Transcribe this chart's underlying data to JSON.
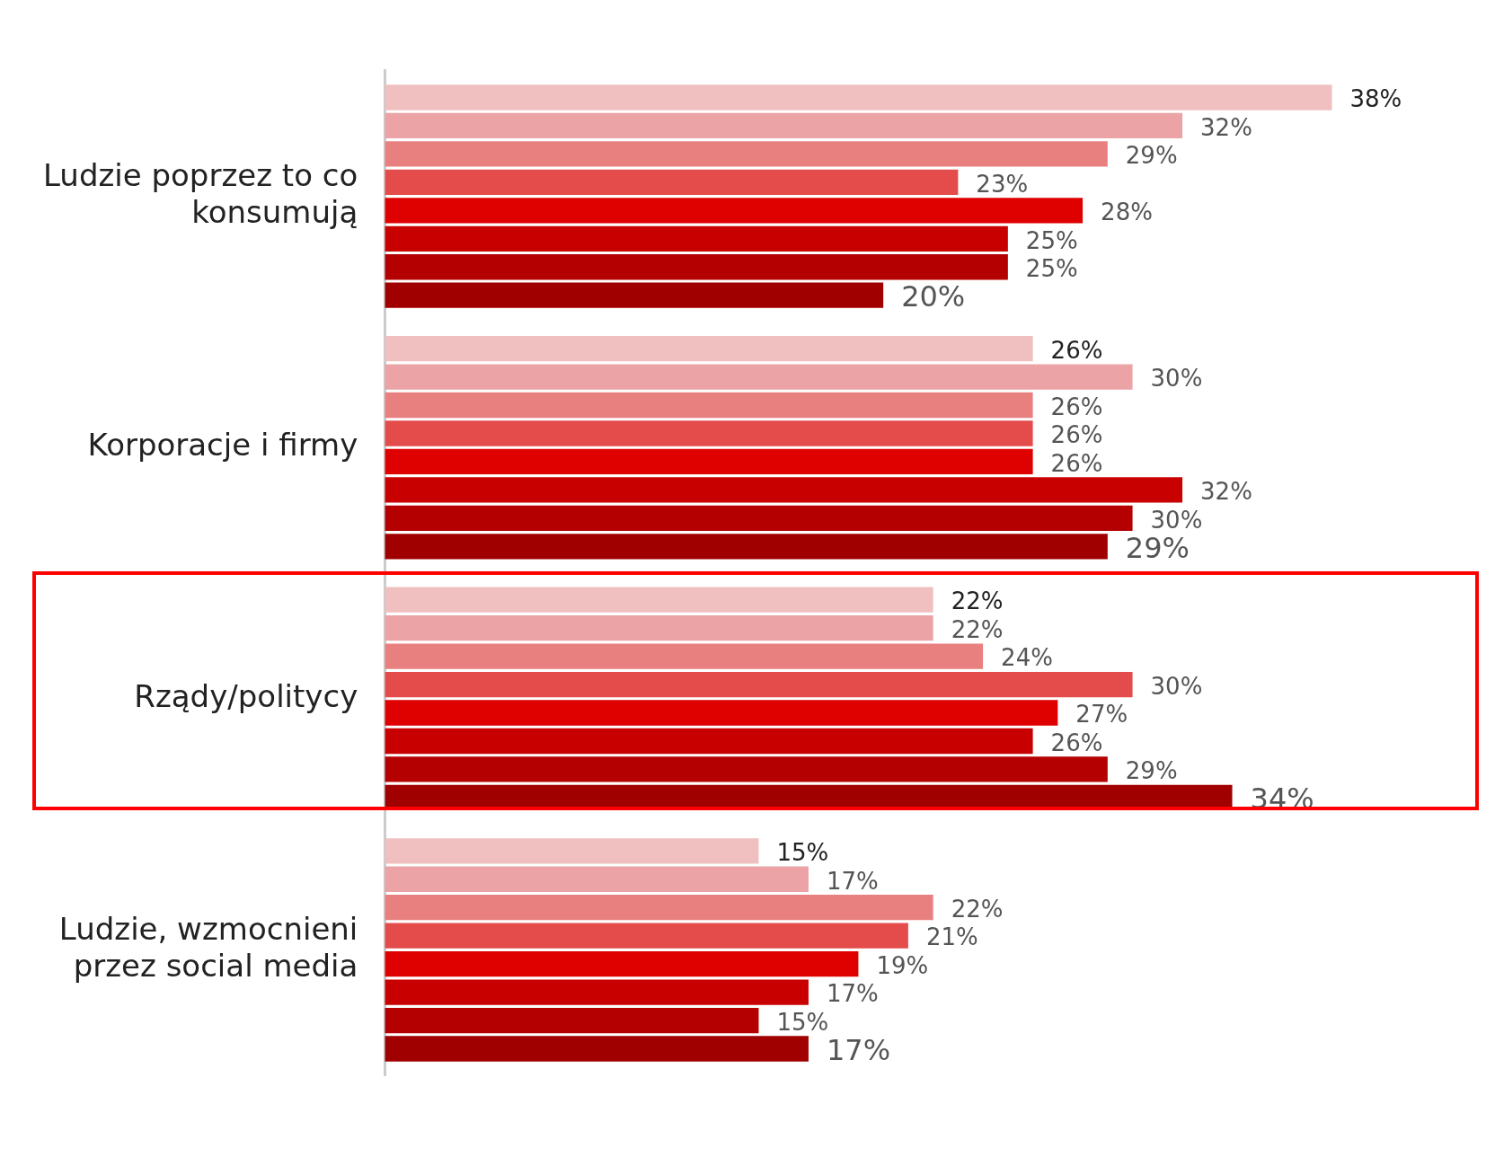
{
  "chart_data": {
    "type": "bar",
    "orientation": "horizontal",
    "categories": [
      "Ludzie poprzez to co konsumują",
      "Korporacje i firmy",
      "Rządy/politycy",
      "Ludzie, wzmocnieni przez social media"
    ],
    "series": [
      {
        "color": "#f0bfc0",
        "values": [
          38,
          26,
          22,
          15
        ],
        "value_labels": [
          "38%",
          "26%",
          "22%",
          "15%"
        ]
      },
      {
        "color": "#eba3a5",
        "values": [
          32,
          30,
          22,
          17
        ],
        "value_labels": [
          "32%",
          "30%",
          "22%",
          "17%"
        ]
      },
      {
        "color": "#e98080",
        "values": [
          29,
          26,
          24,
          22
        ],
        "value_labels": [
          "29%",
          "26%",
          "24%",
          "22%"
        ]
      },
      {
        "color": "#e44b4b",
        "values": [
          23,
          26,
          30,
          21
        ],
        "value_labels": [
          "23%",
          "26%",
          "30%",
          "21%"
        ]
      },
      {
        "color": "#df0000",
        "values": [
          28,
          26,
          27,
          19
        ],
        "value_labels": [
          "28%",
          "26%",
          "27%",
          "19%"
        ]
      },
      {
        "color": "#c80000",
        "values": [
          25,
          32,
          26,
          17
        ],
        "value_labels": [
          "25%",
          "32%",
          "26%",
          "17%"
        ]
      },
      {
        "color": "#b40000",
        "values": [
          25,
          30,
          29,
          15
        ],
        "value_labels": [
          "25%",
          "30%",
          "29%",
          "15%"
        ]
      },
      {
        "color": "#a00000",
        "values": [
          20,
          29,
          34,
          17
        ],
        "value_labels": [
          "20%",
          "29%",
          "34%",
          "17%"
        ]
      }
    ],
    "grid": false,
    "legend": false,
    "tick_labels": "y"
  }
}
